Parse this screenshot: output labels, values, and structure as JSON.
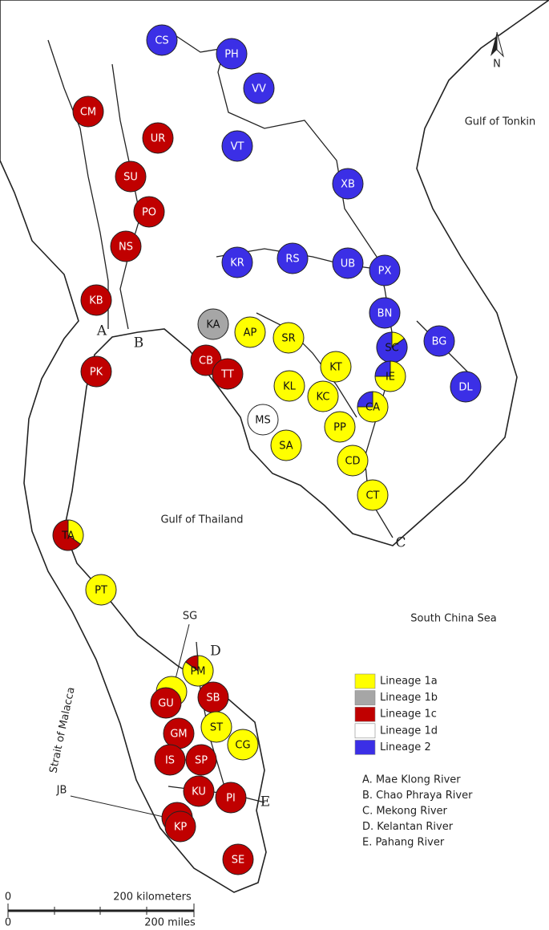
{
  "map": {
    "places": [
      "Gulf of Tonkin",
      "Gulf of Thailand",
      "South China Sea",
      "Strait of Malacca"
    ],
    "rivers_on_map": [
      "A",
      "B",
      "C",
      "D",
      "E"
    ],
    "north": "N",
    "callouts": [
      "SG",
      "JB"
    ],
    "scale": {
      "km_zero": "0",
      "km": "200 kilometers",
      "mi_zero": "0",
      "mi": "200 miles"
    },
    "legend": [
      {
        "label": "Lineage 1a",
        "color": "#ffff00"
      },
      {
        "label": "Lineage 1b",
        "color": "#a6a6a6"
      },
      {
        "label": "Lineage 1c",
        "color": "#c00000"
      },
      {
        "label": "Lineage 1d",
        "color": "#ffffff"
      },
      {
        "label": "Lineage 2",
        "color": "#3b2fe6"
      }
    ],
    "river_key": [
      "A.  Mae Klong River",
      "B.  Chao Phraya River",
      "C.  Mekong River",
      "D.  Kelantan River",
      "E.  Pahang River"
    ],
    "sites": [
      {
        "label": "CS",
        "segments": [
          {
            "color": "#3b2fe6",
            "share": 100
          }
        ]
      },
      {
        "label": "PH",
        "segments": [
          {
            "color": "#3b2fe6",
            "share": 100
          }
        ]
      },
      {
        "label": "VV",
        "segments": [
          {
            "color": "#3b2fe6",
            "share": 100
          }
        ]
      },
      {
        "label": "CM",
        "segments": [
          {
            "color": "#c00000",
            "share": 100
          }
        ]
      },
      {
        "label": "UR",
        "segments": [
          {
            "color": "#c00000",
            "share": 100
          }
        ]
      },
      {
        "label": "VT",
        "segments": [
          {
            "color": "#3b2fe6",
            "share": 100
          }
        ]
      },
      {
        "label": "SU",
        "segments": [
          {
            "color": "#c00000",
            "share": 100
          }
        ]
      },
      {
        "label": "XB",
        "segments": [
          {
            "color": "#3b2fe6",
            "share": 100
          }
        ]
      },
      {
        "label": "PO",
        "segments": [
          {
            "color": "#c00000",
            "share": 100
          }
        ]
      },
      {
        "label": "NS",
        "segments": [
          {
            "color": "#c00000",
            "share": 100
          }
        ]
      },
      {
        "label": "KR",
        "segments": [
          {
            "color": "#3b2fe6",
            "share": 100
          }
        ]
      },
      {
        "label": "RS",
        "segments": [
          {
            "color": "#3b2fe6",
            "share": 100
          }
        ]
      },
      {
        "label": "UB",
        "segments": [
          {
            "color": "#3b2fe6",
            "share": 100
          }
        ]
      },
      {
        "label": "PX",
        "segments": [
          {
            "color": "#3b2fe6",
            "share": 100
          }
        ]
      },
      {
        "label": "KB",
        "segments": [
          {
            "color": "#c00000",
            "share": 100
          }
        ]
      },
      {
        "label": "BN",
        "segments": [
          {
            "color": "#3b2fe6",
            "share": 100
          }
        ]
      },
      {
        "label": "KA",
        "segments": [
          {
            "color": "#a6a6a6",
            "share": 100
          }
        ]
      },
      {
        "label": "AP",
        "segments": [
          {
            "color": "#ffff00",
            "share": 100
          }
        ]
      },
      {
        "label": "SR",
        "segments": [
          {
            "color": "#ffff00",
            "share": 100
          }
        ]
      },
      {
        "label": "SC",
        "segments": [
          {
            "color": "#ffff00",
            "share": 15
          },
          {
            "color": "#3b2fe6",
            "share": 85
          }
        ]
      },
      {
        "label": "BG",
        "segments": [
          {
            "color": "#3b2fe6",
            "share": 100
          }
        ]
      },
      {
        "label": "KT",
        "segments": [
          {
            "color": "#ffff00",
            "share": 100
          }
        ]
      },
      {
        "label": "IE",
        "segments": [
          {
            "color": "#ffff00",
            "share": 75
          },
          {
            "color": "#3b2fe6",
            "share": 25
          }
        ]
      },
      {
        "label": "PK",
        "segments": [
          {
            "color": "#c00000",
            "share": 100
          }
        ]
      },
      {
        "label": "CB",
        "segments": [
          {
            "color": "#c00000",
            "share": 100
          }
        ]
      },
      {
        "label": "TT",
        "segments": [
          {
            "color": "#c00000",
            "share": 100
          }
        ]
      },
      {
        "label": "KL",
        "segments": [
          {
            "color": "#ffff00",
            "share": 100
          }
        ]
      },
      {
        "label": "DL",
        "segments": [
          {
            "color": "#3b2fe6",
            "share": 100
          }
        ]
      },
      {
        "label": "KC",
        "segments": [
          {
            "color": "#ffff00",
            "share": 100
          }
        ]
      },
      {
        "label": "CA",
        "segments": [
          {
            "color": "#ffff00",
            "share": 75
          },
          {
            "color": "#3b2fe6",
            "share": 25
          }
        ]
      },
      {
        "label": "MS",
        "segments": [
          {
            "color": "#ffffff",
            "share": 100
          }
        ]
      },
      {
        "label": "PP",
        "segments": [
          {
            "color": "#ffff00",
            "share": 100
          }
        ]
      },
      {
        "label": "SA",
        "segments": [
          {
            "color": "#ffff00",
            "share": 100
          }
        ]
      },
      {
        "label": "CD",
        "segments": [
          {
            "color": "#ffff00",
            "share": 100
          }
        ]
      },
      {
        "label": "CT",
        "segments": [
          {
            "color": "#ffff00",
            "share": 100
          }
        ]
      },
      {
        "label": "TA",
        "segments": [
          {
            "color": "#ffff00",
            "share": 35
          },
          {
            "color": "#c00000",
            "share": 65
          }
        ]
      },
      {
        "label": "PT",
        "segments": [
          {
            "color": "#ffff00",
            "share": 100
          }
        ]
      },
      {
        "label": "PM",
        "segments": [
          {
            "color": "#ffff00",
            "share": 85
          },
          {
            "color": "#c00000",
            "share": 15
          }
        ]
      },
      {
        "label": "GU",
        "segments": [
          {
            "color": "#c00000",
            "share": 100
          }
        ]
      },
      {
        "label": "SB",
        "segments": [
          {
            "color": "#c00000",
            "share": 100
          }
        ]
      },
      {
        "label": "ST",
        "segments": [
          {
            "color": "#ffff00",
            "share": 100
          }
        ]
      },
      {
        "label": "CG",
        "segments": [
          {
            "color": "#ffff00",
            "share": 100
          }
        ]
      },
      {
        "label": "GM",
        "segments": [
          {
            "color": "#c00000",
            "share": 100
          }
        ]
      },
      {
        "label": "IS",
        "segments": [
          {
            "color": "#c00000",
            "share": 100
          }
        ]
      },
      {
        "label": "SP",
        "segments": [
          {
            "color": "#c00000",
            "share": 100
          }
        ]
      },
      {
        "label": "KU",
        "segments": [
          {
            "color": "#c00000",
            "share": 100
          }
        ]
      },
      {
        "label": "PI",
        "segments": [
          {
            "color": "#c00000",
            "share": 100
          }
        ]
      },
      {
        "label": "KP",
        "segments": [
          {
            "color": "#c00000",
            "share": 100
          }
        ]
      },
      {
        "label": "SE",
        "segments": [
          {
            "color": "#c00000",
            "share": 100
          }
        ]
      }
    ]
  }
}
